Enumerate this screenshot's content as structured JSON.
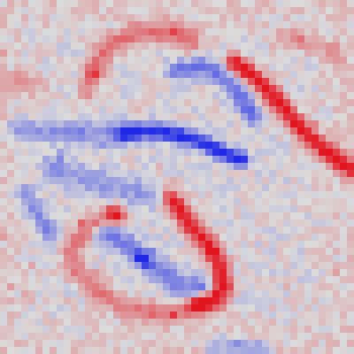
{
  "image": {
    "kind": "saliency-heatmap",
    "grid": {
      "rows": 50,
      "cols": 50
    },
    "palette": {
      "neutral": "#dcdcdc",
      "positive": "#e2141e",
      "negative": "#1e28e6"
    }
  }
}
